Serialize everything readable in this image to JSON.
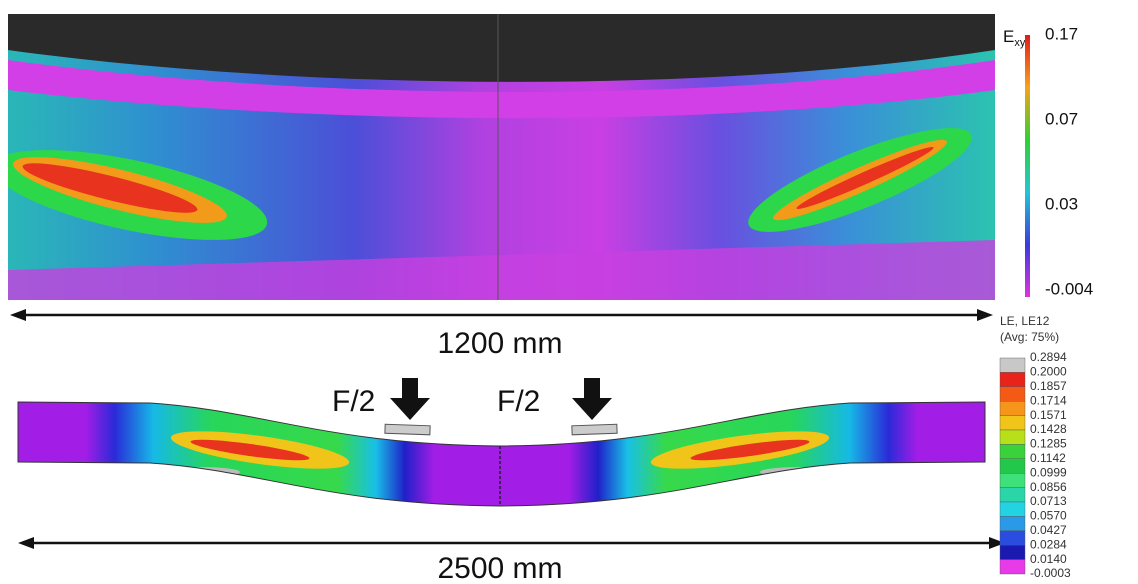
{
  "colorbar": {
    "label": "E",
    "label_sub": "xy",
    "ticks": [
      "0.17",
      "0.07",
      "0.03",
      "-0.004"
    ]
  },
  "top_dimension": "1200 mm",
  "loads": [
    "F/2",
    "F/2"
  ],
  "legend": {
    "title": "LE, LE12",
    "subtitle": "(Avg: 75%)",
    "values": [
      "0.2894",
      "0.2000",
      "0.1857",
      "0.1714",
      "0.1571",
      "0.1428",
      "0.1285",
      "0.1142",
      "0.0999",
      "0.0856",
      "0.0713",
      "0.0570",
      "0.0427",
      "0.0284",
      "0.0140",
      "-0.0003"
    ]
  },
  "bottom_dimension": "2500 mm"
}
